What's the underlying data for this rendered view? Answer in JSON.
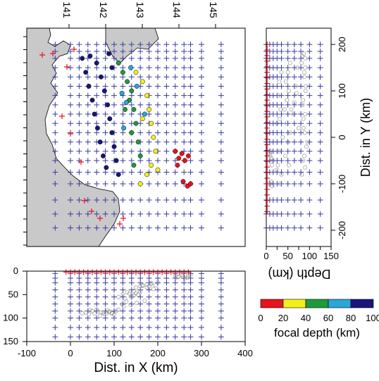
{
  "chart_data": [
    {
      "type": "scatter",
      "panel": "map",
      "top_tick_labels": [
        "141",
        "142",
        "143",
        "144",
        "145"
      ],
      "lon_ticks": [
        141,
        142,
        143,
        144,
        145
      ],
      "grid_note": "blue plus markers = model grid nodes; red plus = stations",
      "depth_color_bins": [
        {
          "range": [
            0,
            20
          ],
          "color": "#e8121b"
        },
        {
          "range": [
            20,
            40
          ],
          "color": "#f4ef1c"
        },
        {
          "range": [
            40,
            60
          ],
          "color": "#1f9a3a"
        },
        {
          "range": [
            60,
            80
          ],
          "color": "#2aa6d8"
        },
        {
          "range": [
            80,
            100
          ],
          "color": "#17177a"
        }
      ],
      "events": [
        {
          "x": 27,
          "y": 170,
          "depth": 90
        },
        {
          "x": 35,
          "y": 140,
          "depth": 88
        },
        {
          "x": 42,
          "y": 110,
          "depth": 92
        },
        {
          "x": 50,
          "y": 80,
          "depth": 85
        },
        {
          "x": 55,
          "y": 50,
          "depth": 90
        },
        {
          "x": 62,
          "y": 20,
          "depth": 86
        },
        {
          "x": 68,
          "y": -10,
          "depth": 95
        },
        {
          "x": 75,
          "y": -40,
          "depth": 88
        },
        {
          "x": 82,
          "y": -65,
          "depth": 90
        },
        {
          "x": 60,
          "y": 160,
          "depth": 82
        },
        {
          "x": 70,
          "y": 130,
          "depth": 88
        },
        {
          "x": 78,
          "y": 100,
          "depth": 91
        },
        {
          "x": 85,
          "y": 70,
          "depth": 84
        },
        {
          "x": 90,
          "y": 40,
          "depth": 86
        },
        {
          "x": 95,
          "y": 10,
          "depth": 89
        },
        {
          "x": 100,
          "y": -20,
          "depth": 93
        },
        {
          "x": 105,
          "y": -50,
          "depth": 85
        },
        {
          "x": 110,
          "y": -80,
          "depth": 82
        },
        {
          "x": 88,
          "y": 180,
          "depth": 87
        },
        {
          "x": 95,
          "y": 150,
          "depth": 90
        },
        {
          "x": 45,
          "y": 175,
          "depth": 83
        },
        {
          "x": 110,
          "y": 160,
          "depth": 55
        },
        {
          "x": 120,
          "y": 140,
          "depth": 50
        },
        {
          "x": 130,
          "y": 120,
          "depth": 45
        },
        {
          "x": 140,
          "y": 100,
          "depth": 52
        },
        {
          "x": 135,
          "y": 80,
          "depth": 48
        },
        {
          "x": 125,
          "y": 60,
          "depth": 58
        },
        {
          "x": 145,
          "y": 60,
          "depth": 42
        },
        {
          "x": 150,
          "y": 30,
          "depth": 47
        },
        {
          "x": 140,
          "y": 10,
          "depth": 55
        },
        {
          "x": 155,
          "y": -10,
          "depth": 50
        },
        {
          "x": 160,
          "y": -40,
          "depth": 44
        },
        {
          "x": 145,
          "y": -60,
          "depth": 52
        },
        {
          "x": 118,
          "y": 95,
          "depth": 70
        },
        {
          "x": 128,
          "y": 75,
          "depth": 65
        },
        {
          "x": 138,
          "y": 150,
          "depth": 72
        },
        {
          "x": 152,
          "y": 110,
          "depth": 68
        },
        {
          "x": 122,
          "y": 20,
          "depth": 75
        },
        {
          "x": 170,
          "y": 50,
          "depth": 63
        },
        {
          "x": 150,
          "y": 140,
          "depth": 35
        },
        {
          "x": 165,
          "y": 120,
          "depth": 30
        },
        {
          "x": 175,
          "y": 90,
          "depth": 28
        },
        {
          "x": 180,
          "y": 60,
          "depth": 33
        },
        {
          "x": 185,
          "y": 30,
          "depth": 25
        },
        {
          "x": 190,
          "y": 0,
          "depth": 38
        },
        {
          "x": 195,
          "y": -30,
          "depth": 30
        },
        {
          "x": 185,
          "y": -60,
          "depth": 27
        },
        {
          "x": 175,
          "y": -80,
          "depth": 35
        },
        {
          "x": 160,
          "y": -100,
          "depth": 32
        },
        {
          "x": 200,
          "y": -70,
          "depth": 24
        },
        {
          "x": 165,
          "y": 40,
          "depth": 31
        },
        {
          "x": 240,
          "y": -30,
          "depth": 10
        },
        {
          "x": 248,
          "y": -45,
          "depth": 12
        },
        {
          "x": 255,
          "y": -35,
          "depth": 8
        },
        {
          "x": 262,
          "y": -50,
          "depth": 15
        },
        {
          "x": 270,
          "y": -40,
          "depth": 9
        },
        {
          "x": 258,
          "y": -95,
          "depth": 11
        },
        {
          "x": 268,
          "y": -105,
          "depth": 14
        },
        {
          "x": 275,
          "y": -100,
          "depth": 7
        },
        {
          "x": 245,
          "y": -60,
          "depth": 13
        }
      ]
    },
    {
      "type": "scatter",
      "panel": "y-depth section",
      "ylabel": "Dist. in Y (km)",
      "xlabel": "Depth (km)",
      "y_ticks": [
        "-200",
        "-100",
        "0",
        "100",
        "200"
      ],
      "x_ticks": [
        "0",
        "25",
        "50",
        "75",
        "100",
        "125",
        "150"
      ],
      "ylim": [
        -235,
        235
      ],
      "xlim": [
        0,
        150
      ]
    },
    {
      "type": "scatter",
      "panel": "x-depth section",
      "xlabel": "Dist. in X (km)",
      "x_ticks": [
        "-100",
        "0",
        "100",
        "200",
        "300",
        "400"
      ],
      "y_ticks": [
        "0",
        "50",
        "100",
        "150"
      ],
      "xlim": [
        -100,
        400
      ],
      "ylim": [
        0,
        150
      ]
    }
  ],
  "legend": {
    "tick_labels": [
      "0",
      "20",
      "40",
      "60",
      "80",
      "100"
    ],
    "title": "focal depth (km)",
    "colors": [
      "#e8121b",
      "#f4ef1c",
      "#1f9a3a",
      "#2aa6d8",
      "#17177a"
    ]
  }
}
